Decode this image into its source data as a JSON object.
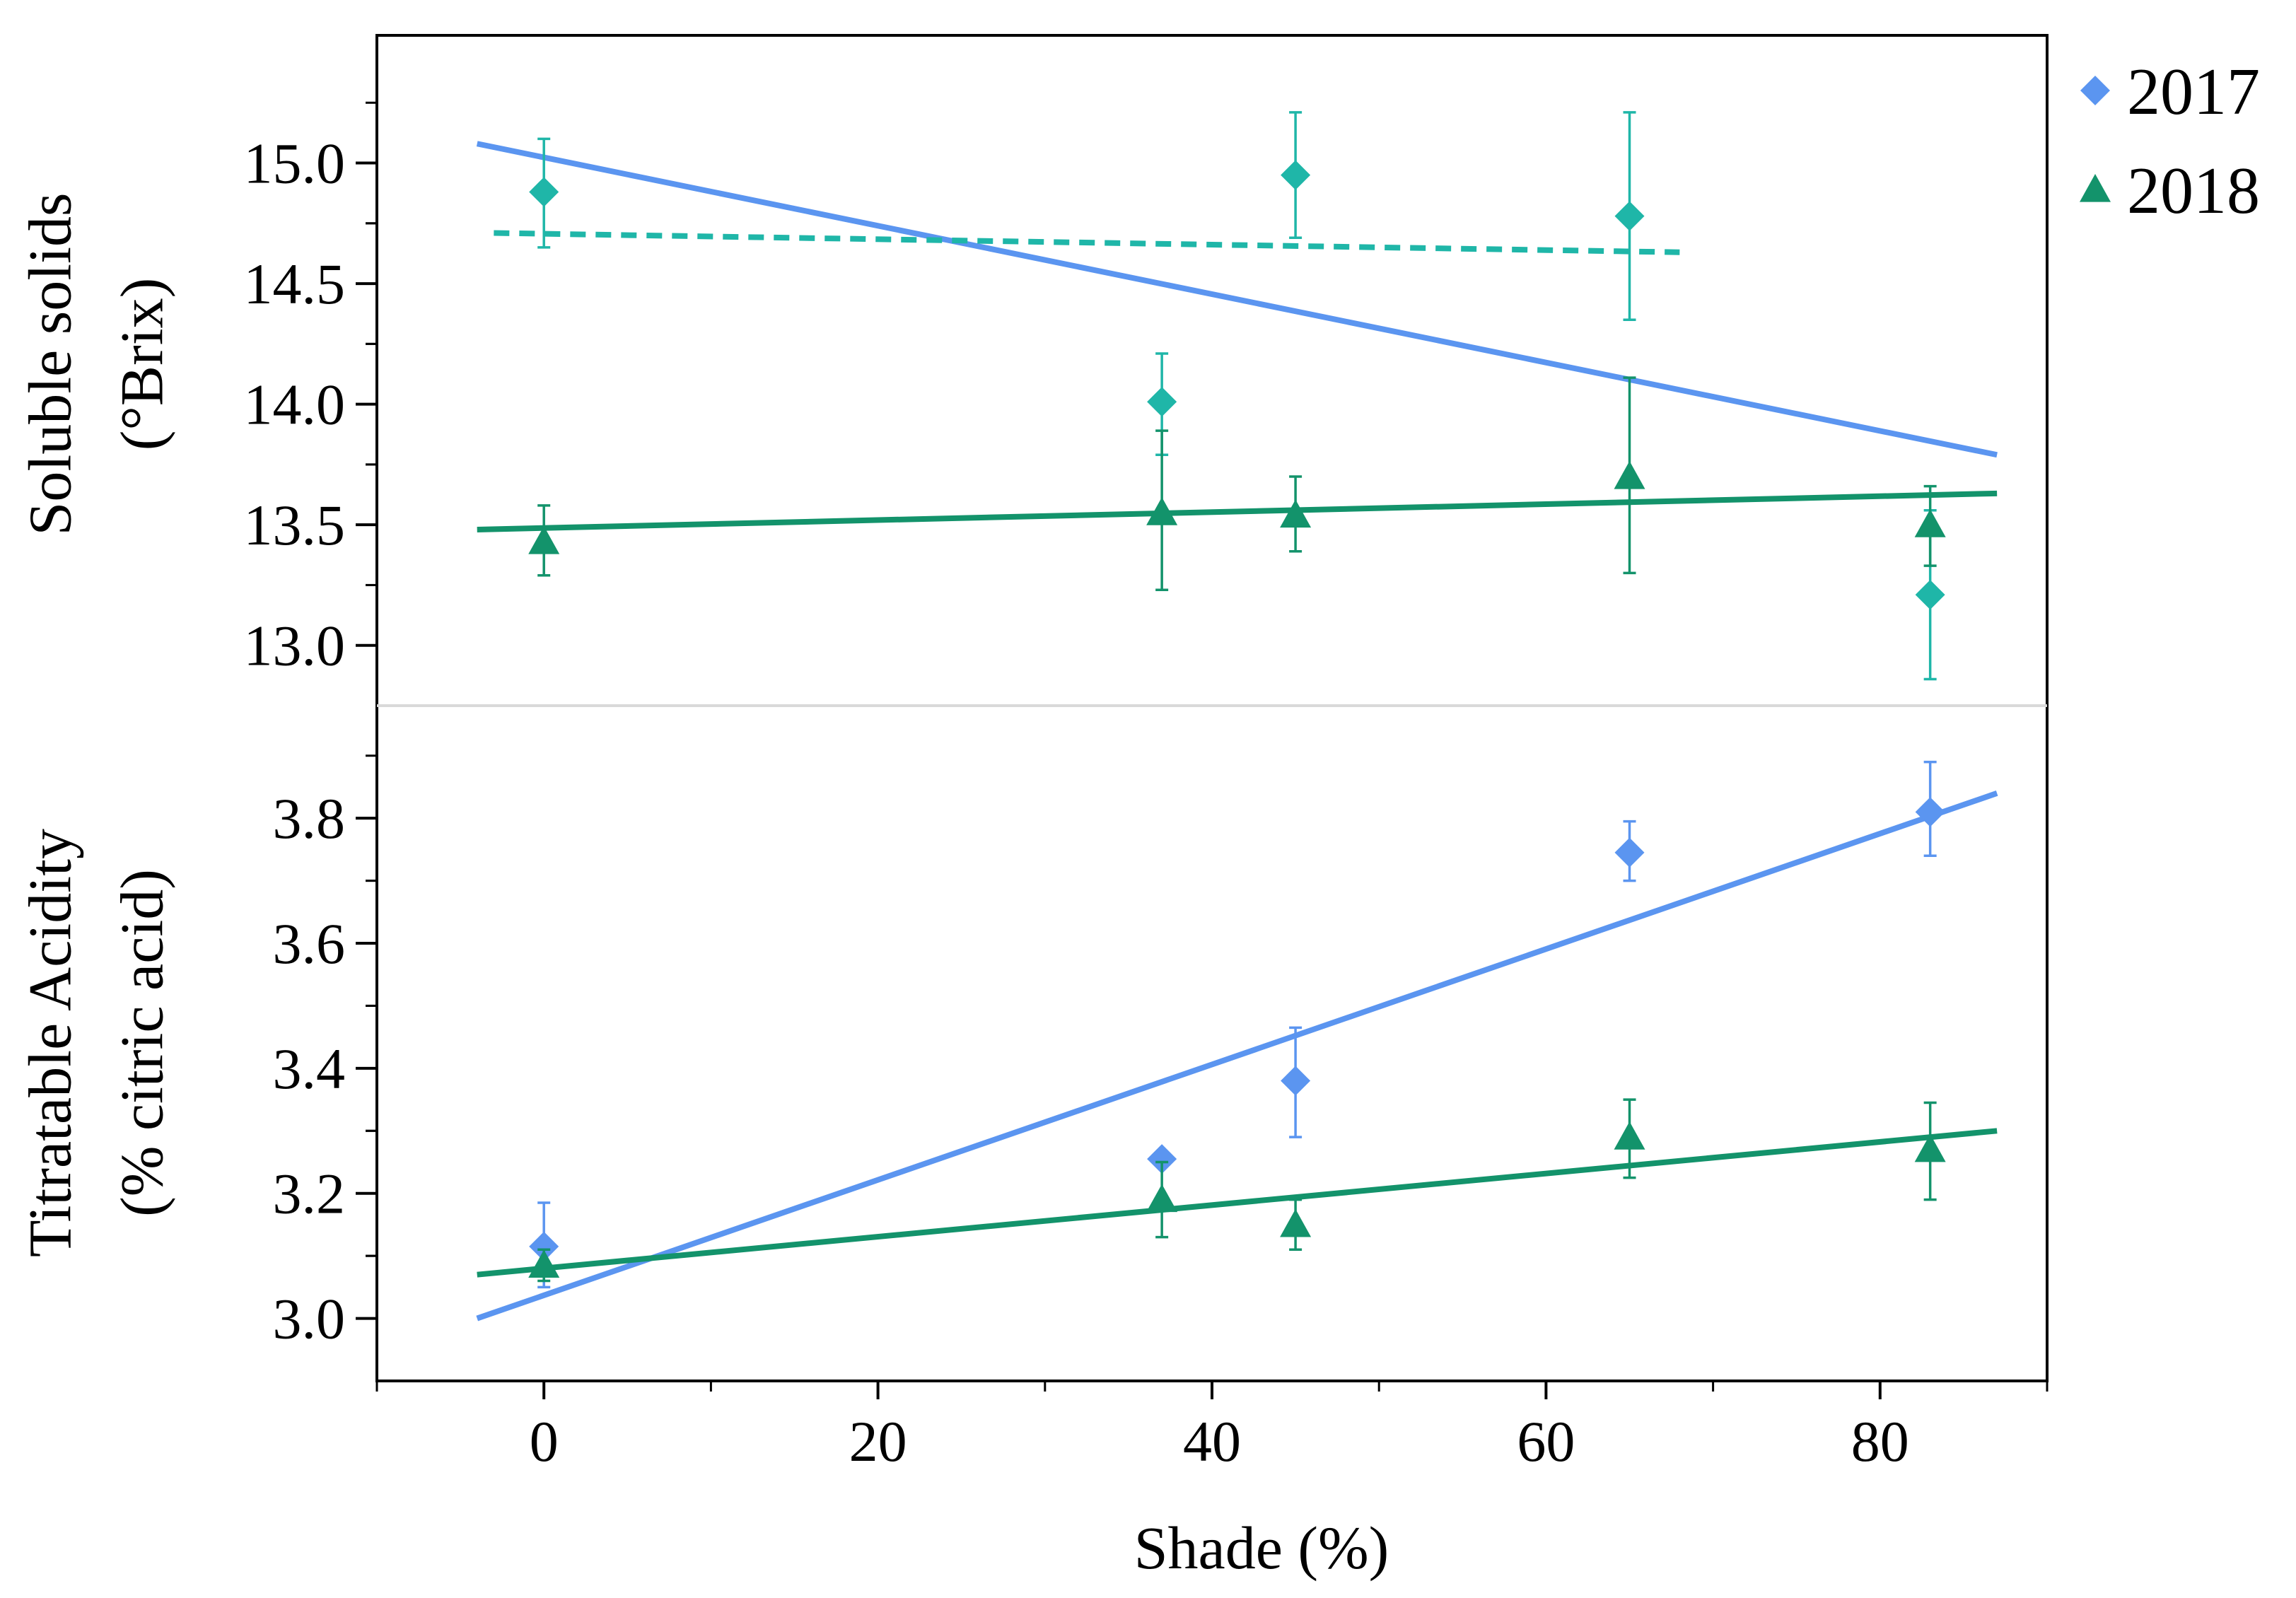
{
  "colors": {
    "blue": "#5b95f0",
    "teal": "#1fb6a8",
    "green": "#13936b",
    "axis": "#000000",
    "divider": "#d9d9d9"
  },
  "legend": {
    "items": [
      {
        "label": "2017",
        "marker": "diamond-icon",
        "color": "#5b95f0"
      },
      {
        "label": "2018",
        "marker": "triangle-icon",
        "color": "#13936b"
      }
    ]
  },
  "chart_data": [
    {
      "type": "scatter",
      "panel": "top",
      "ylabel_lines": [
        "Soluble solids",
        "(°Brix)"
      ],
      "ylim": [
        12.75,
        15.5
      ],
      "yticks": [
        13.0,
        13.5,
        14.0,
        14.5,
        15.0
      ],
      "ytick_labels": [
        "13.0",
        "13.5",
        "14.0",
        "14.5",
        "15.0"
      ],
      "series": [
        {
          "name": "2017 points",
          "marker": "diamond",
          "color": "#1fb6a8",
          "points": [
            {
              "x": 0,
              "y": 14.88,
              "err": [
                14.65,
                15.1
              ]
            },
            {
              "x": 37,
              "y": 14.01,
              "err": [
                13.79,
                14.21
              ]
            },
            {
              "x": 45,
              "y": 14.95,
              "err": [
                14.69,
                15.21
              ]
            },
            {
              "x": 65,
              "y": 14.78,
              "err": [
                14.35,
                15.21
              ]
            },
            {
              "x": 83,
              "y": 13.21,
              "err": [
                12.86,
                13.56
              ]
            }
          ]
        },
        {
          "name": "2018 points",
          "marker": "triangle",
          "color": "#13936b",
          "points": [
            {
              "x": 0,
              "y": 13.43,
              "err": [
                13.29,
                13.58
              ]
            },
            {
              "x": 37,
              "y": 13.55,
              "err": [
                13.23,
                13.89
              ]
            },
            {
              "x": 45,
              "y": 13.54,
              "err": [
                13.39,
                13.7
              ]
            },
            {
              "x": 65,
              "y": 13.7,
              "err": [
                13.3,
                14.11
              ]
            },
            {
              "x": 83,
              "y": 13.5,
              "err": [
                13.33,
                13.66
              ]
            }
          ]
        }
      ],
      "fits": [
        {
          "name": "2017 fit (blue)",
          "color": "#5b95f0",
          "style": "solid",
          "x": [
            -4,
            87
          ],
          "y": [
            15.08,
            13.79
          ]
        },
        {
          "name": "2017 fit (teal)",
          "color": "#1fb6a8",
          "style": "dashed",
          "x": [
            -3,
            68
          ],
          "y": [
            14.71,
            14.63
          ]
        },
        {
          "name": "2018 fit",
          "color": "#13936b",
          "style": "solid",
          "x": [
            -4,
            87
          ],
          "y": [
            13.48,
            13.63
          ]
        }
      ]
    },
    {
      "type": "scatter",
      "panel": "bottom",
      "ylabel_lines": [
        "Titratable Acidity",
        "(% citric acid)"
      ],
      "xlabel": "Shade (%)",
      "xlim": [
        -10,
        90
      ],
      "xticks": [
        0,
        20,
        40,
        60,
        80
      ],
      "xtick_labels": [
        "0",
        "20",
        "40",
        "60",
        "80"
      ],
      "xminor": [
        -10,
        10,
        30,
        50,
        70,
        90
      ],
      "ylim": [
        2.9,
        3.98
      ],
      "yticks": [
        3.0,
        3.2,
        3.4,
        3.6,
        3.8
      ],
      "ytick_labels": [
        "3.0",
        "3.2",
        "3.4",
        "3.6",
        "3.8"
      ],
      "series": [
        {
          "name": "2017",
          "marker": "diamond",
          "color": "#5b95f0",
          "points": [
            {
              "x": 0,
              "y": 3.115,
              "err": [
                3.05,
                3.185
              ]
            },
            {
              "x": 37,
              "y": 3.255,
              "err": null
            },
            {
              "x": 45,
              "y": 3.38,
              "err": [
                3.29,
                3.465
              ]
            },
            {
              "x": 65,
              "y": 3.745,
              "err": [
                3.7,
                3.795
              ]
            },
            {
              "x": 83,
              "y": 3.81,
              "err": [
                3.74,
                3.89
              ]
            }
          ]
        },
        {
          "name": "2018",
          "marker": "triangle",
          "color": "#13936b",
          "points": [
            {
              "x": 0,
              "y": 3.085,
              "err": [
                3.06,
                3.11
              ]
            },
            {
              "x": 37,
              "y": 3.19,
              "err": [
                3.13,
                3.25
              ]
            },
            {
              "x": 45,
              "y": 3.15,
              "err": [
                3.11,
                3.19
              ]
            },
            {
              "x": 65,
              "y": 3.29,
              "err": [
                3.225,
                3.35
              ]
            },
            {
              "x": 83,
              "y": 3.27,
              "err": [
                3.19,
                3.345
              ]
            }
          ]
        }
      ],
      "fits": [
        {
          "name": "2017 fit",
          "color": "#5b95f0",
          "style": "solid",
          "x": [
            -4,
            87
          ],
          "y": [
            3.0,
            3.84
          ]
        },
        {
          "name": "2018 fit",
          "color": "#13936b",
          "style": "solid",
          "x": [
            -4,
            87
          ],
          "y": [
            3.07,
            3.3
          ]
        }
      ]
    }
  ]
}
